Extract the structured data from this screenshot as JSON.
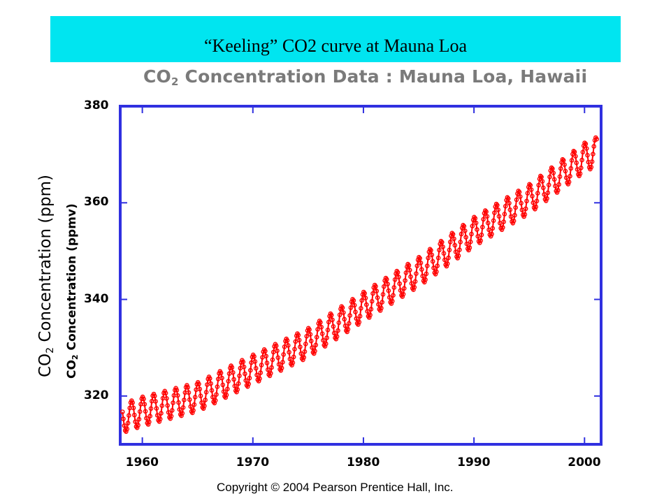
{
  "slide": {
    "title": "“Keeling” CO2 curve at Mauna Loa",
    "copyright": "Copyright © 2004 Pearson Prentice Hall, Inc.",
    "banner_color": "#00e5f0"
  },
  "chart_data": {
    "type": "line",
    "title": "Concentration Data : Mauna Loa, Hawaii",
    "title_prefix": "CO",
    "title_sub": "2",
    "ylabel_outer_prefix": "CO",
    "ylabel_outer_sub": "2",
    "ylabel_outer_suffix": " Concentration (ppm)",
    "ylabel_inner_prefix": "CO",
    "ylabel_inner_sub": "2",
    "ylabel_inner_suffix": " Concentration (ppmv)",
    "xlabel": "",
    "xlim": [
      1958,
      2001.5
    ],
    "ylim": [
      310,
      380
    ],
    "x_ticks": [
      1960,
      1970,
      1980,
      1990,
      2000
    ],
    "y_ticks": [
      320,
      340,
      360,
      380
    ],
    "x_tick_labels": [
      "1960",
      "1970",
      "1980",
      "1990",
      "2000"
    ],
    "y_tick_labels": [
      "320",
      "340",
      "360",
      "380"
    ],
    "frame_color": "#3030e0",
    "series_color": "#ff0000",
    "series": [
      {
        "x_start": 1958.2,
        "x_step": 0.0833,
        "seasonal_amplitude": 3.0,
        "trend_points": [
          [
            1958,
            315.2
          ],
          [
            1960,
            316.8
          ],
          [
            1965,
            319.8
          ],
          [
            1970,
            325.5
          ],
          [
            1975,
            331.0
          ],
          [
            1980,
            338.5
          ],
          [
            1985,
            345.7
          ],
          [
            1990,
            354.0
          ],
          [
            1995,
            360.8
          ],
          [
            2000,
            369.4
          ],
          [
            2001,
            370.5
          ]
        ]
      }
    ]
  }
}
